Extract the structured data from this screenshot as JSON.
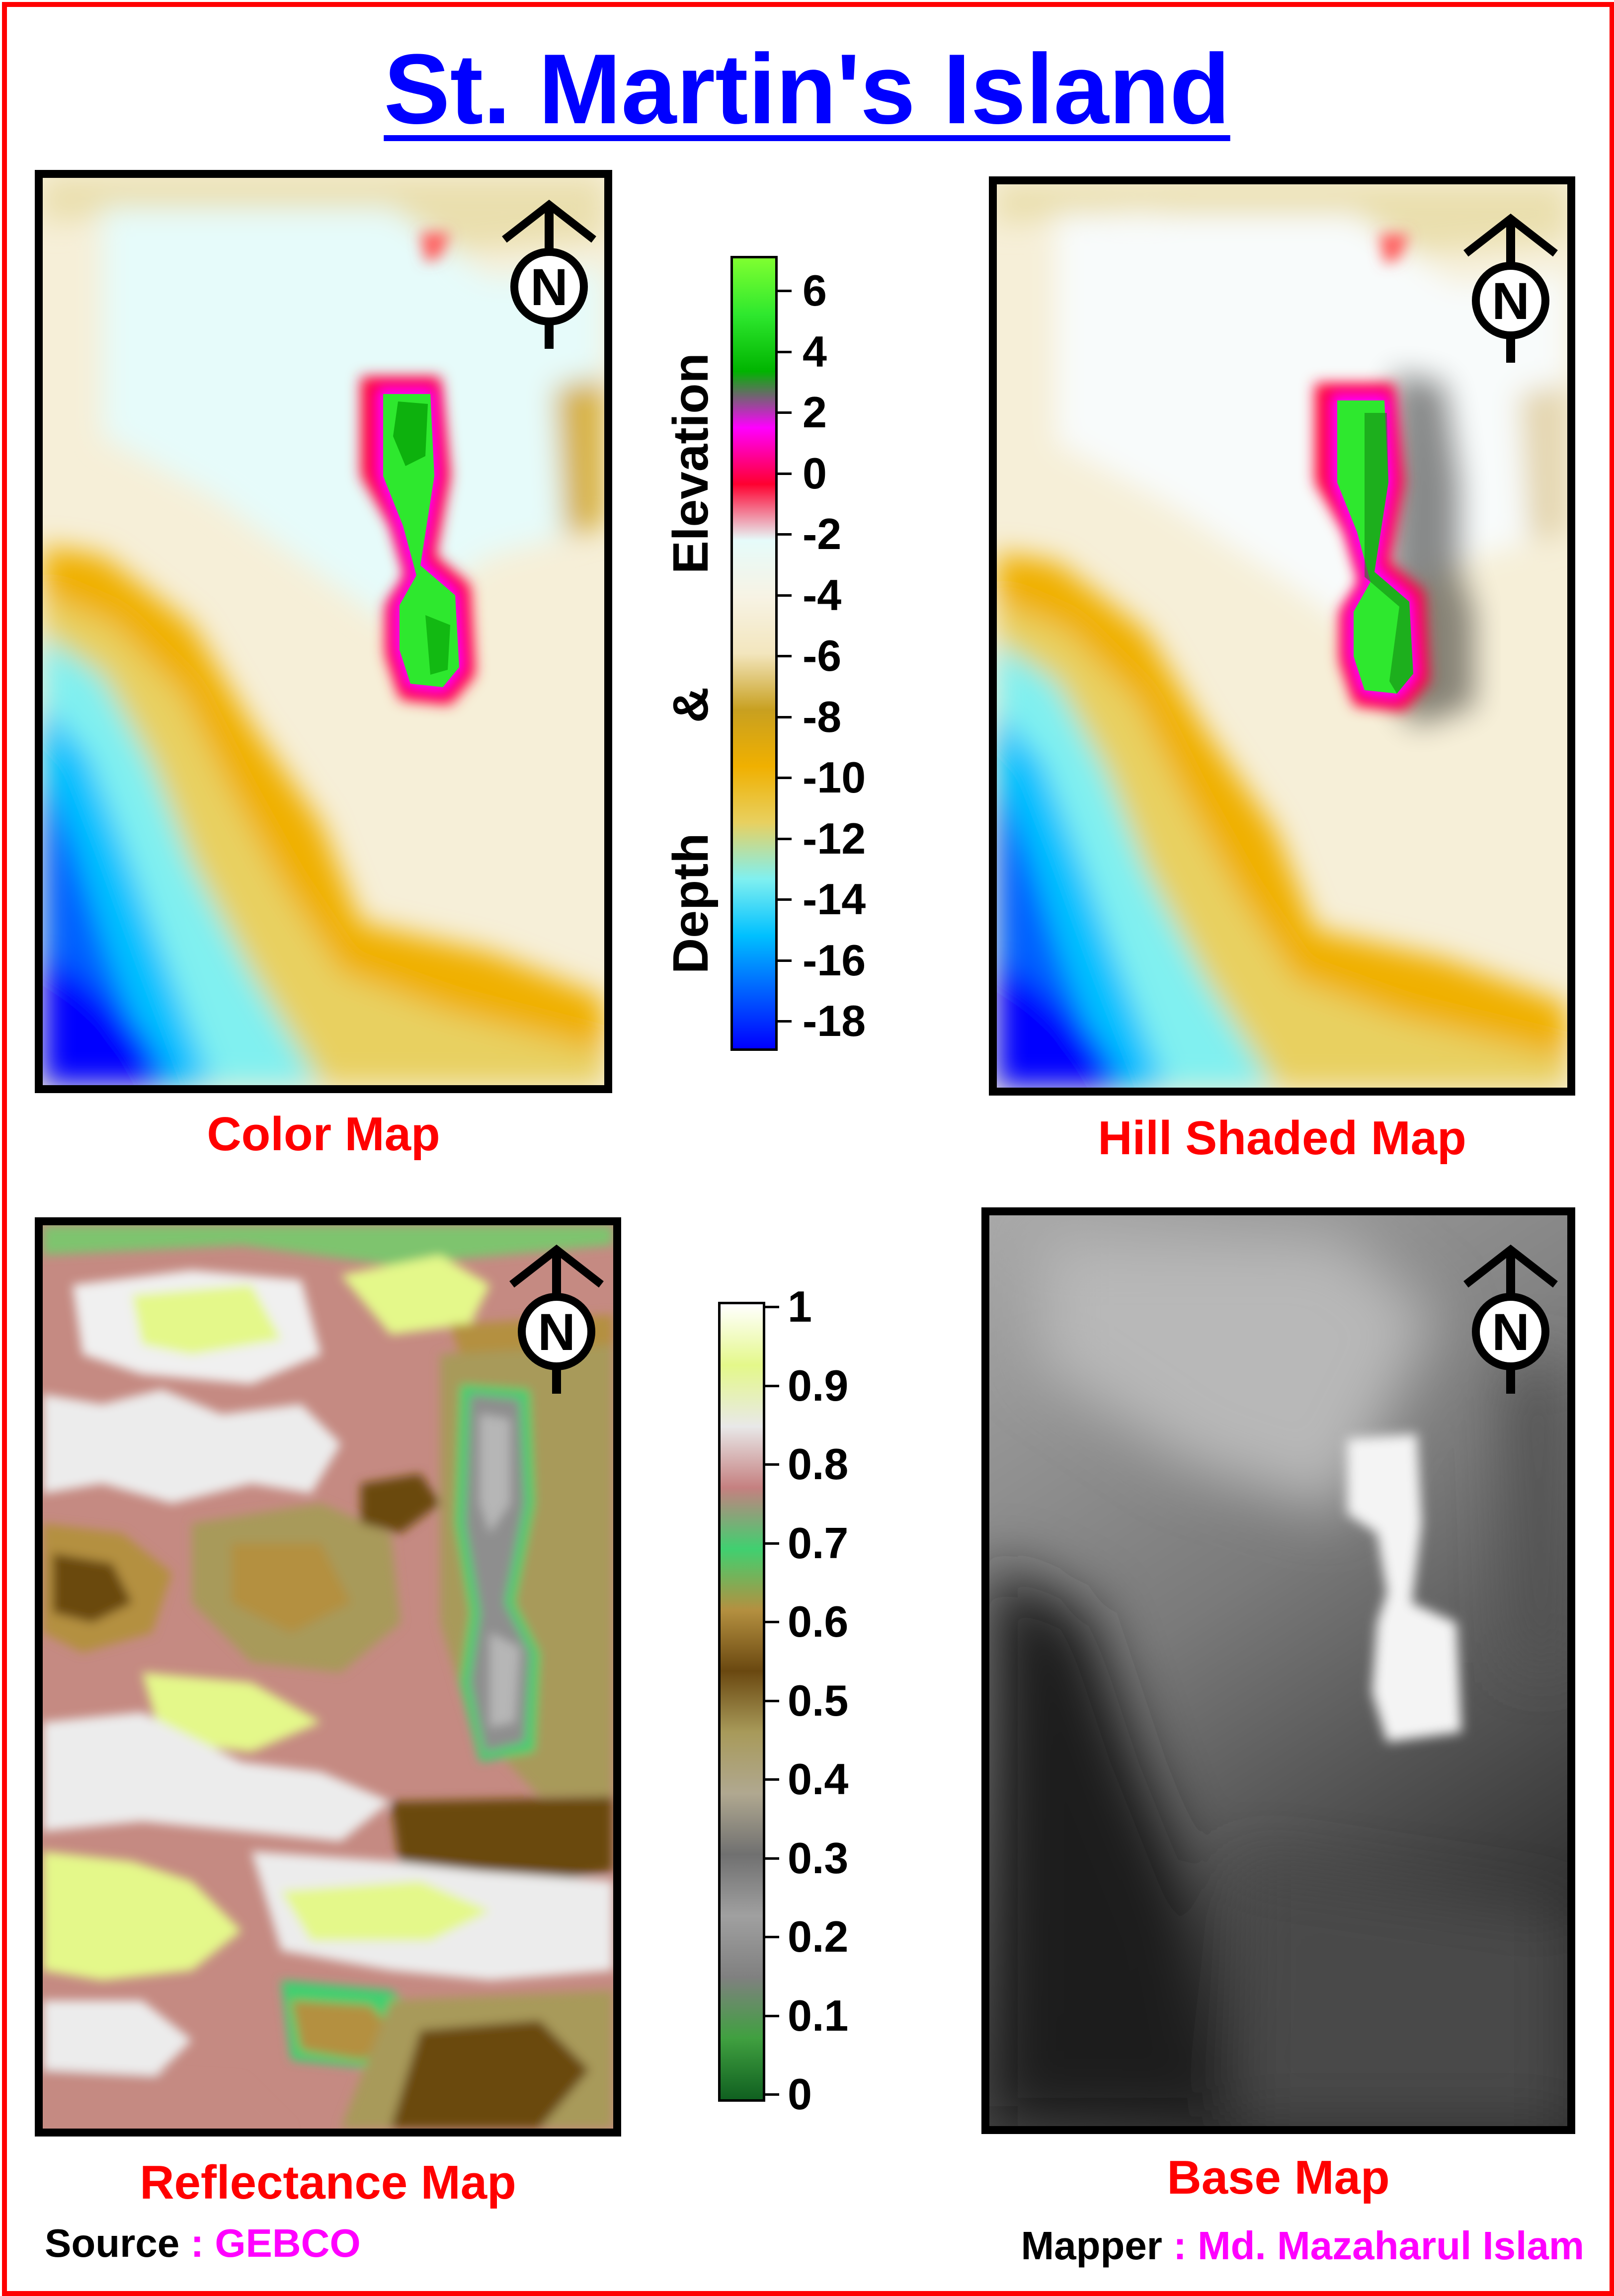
{
  "title": "St. Martin's Island",
  "panels": {
    "color_map": {
      "caption": "Color Map"
    },
    "hill_shaded_map": {
      "caption": "Hill Shaded Map"
    },
    "reflectance_map": {
      "caption": "Reflectance Map"
    },
    "base_map": {
      "caption": "Base Map"
    }
  },
  "north_arrow": {
    "label": "N",
    "icon": "north-arrow-icon"
  },
  "elevation_legend": {
    "title_words": [
      "Depth",
      "&",
      "Elevation"
    ],
    "ticks": [
      "6",
      "4",
      "2",
      "0",
      "-2",
      "-4",
      "-6",
      "-8",
      "-10",
      "-12",
      "-14",
      "-16",
      "-18"
    ],
    "colors": [
      "#7fff30",
      "#2ee82e",
      "#00b400",
      "#ff00ff",
      "#ff0030",
      "#e6fbfa",
      "#f7f3e4",
      "#f3e6be",
      "#c8a020",
      "#f0b000",
      "#e8d060",
      "#80f0f0",
      "#00c0ff",
      "#0060ff",
      "#0000ff"
    ]
  },
  "reflectance_legend": {
    "ticks": [
      "1",
      "0.9",
      "0.8",
      "0.7",
      "0.6",
      "0.5",
      "0.4",
      "0.3",
      "0.2",
      "0.1",
      "0"
    ],
    "colors": [
      "#ffffff",
      "#e4f88a",
      "#e8e8e8",
      "#c58080",
      "#40d070",
      "#b49040",
      "#6a4810",
      "#a89a5a",
      "#b0a890",
      "#707070",
      "#a0a0a0",
      "#808080",
      "#40a040",
      "#106020"
    ]
  },
  "source": {
    "label": "Source",
    "separator": " : ",
    "value": "GEBCO",
    "value_color": "#ff00ff"
  },
  "mapper": {
    "label": "Mapper",
    "separator": " : ",
    "value": "Md. Mazaharul Islam",
    "value_color": "#ff00ff"
  }
}
